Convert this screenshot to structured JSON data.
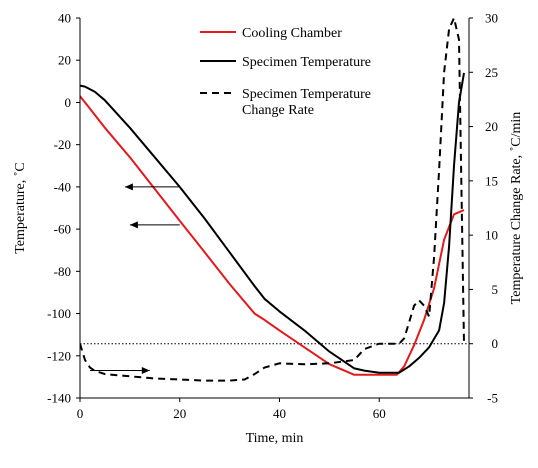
{
  "chart_data": {
    "type": "line",
    "x_axis": {
      "label": "Time, min",
      "range": [
        0,
        78
      ],
      "ticks": [
        0,
        20,
        40,
        60
      ],
      "tick_labels": [
        "0",
        "20",
        "40",
        "60"
      ]
    },
    "y_left": {
      "label": "Temperature, ˚C",
      "range": [
        -140,
        40
      ],
      "ticks": [
        40,
        20,
        0,
        -20,
        -40,
        -60,
        -80,
        -100,
        -120,
        -140
      ],
      "tick_labels": [
        "40",
        "20",
        "0",
        "-20",
        "-40",
        "-60",
        "-80",
        "-100",
        "-120",
        "-140"
      ]
    },
    "y_right": {
      "label": "Temperature Change Rate, ˚C/min",
      "range": [
        -5,
        30
      ],
      "ticks": [
        30,
        25,
        20,
        15,
        10,
        5,
        0,
        -5
      ],
      "tick_labels": [
        "30",
        "25",
        "20",
        "15",
        "10",
        "5",
        "0",
        "-5"
      ]
    },
    "zero_rate_reference": {
      "axis": "right",
      "value": 0,
      "style": "dotted"
    },
    "legend": {
      "position": "top-center",
      "entries": [
        {
          "label_lines": [
            "Cooling Chamber"
          ],
          "color": "#e31a1c",
          "dash": "solid"
        },
        {
          "label_lines": [
            "Specimen Temperature"
          ],
          "color": "#000000",
          "dash": "solid"
        },
        {
          "label_lines": [
            "Specimen Temperature",
            "Change Rate"
          ],
          "color": "#000000",
          "dash": "dashed"
        }
      ]
    },
    "annotations": [
      {
        "type": "arrow",
        "points_to": "left-axis",
        "from": {
          "x": 20,
          "y": -40
        },
        "to": {
          "x": 9,
          "y": -40
        }
      },
      {
        "type": "arrow",
        "points_to": "left-axis",
        "from": {
          "x": 20,
          "y": -58
        },
        "to": {
          "x": 10,
          "y": -58
        }
      },
      {
        "type": "arrow",
        "points_to": "right-axis",
        "from": {
          "x": 2,
          "y": -127
        },
        "to": {
          "x": 14,
          "y": -127
        }
      }
    ],
    "series": [
      {
        "name": "Cooling Chamber",
        "axis": "left",
        "color": "#e31a1c",
        "dash": "solid",
        "x": [
          0,
          2,
          5,
          10,
          15,
          20,
          25,
          30,
          35,
          37,
          40,
          45,
          50,
          55,
          57,
          60,
          62,
          63.5,
          65,
          67,
          69,
          71,
          73,
          75,
          77
        ],
        "y": [
          3,
          -3,
          -12,
          -26,
          -41,
          -56,
          -71,
          -86,
          -100,
          -103,
          -108,
          -116,
          -124,
          -129,
          -129,
          -129,
          -129,
          -129,
          -125,
          -115,
          -103,
          -88,
          -65,
          -53,
          -51
        ]
      },
      {
        "name": "Specimen Temperature",
        "axis": "left",
        "color": "#000000",
        "dash": "solid",
        "x": [
          0,
          1,
          3,
          5,
          10,
          15,
          20,
          25,
          30,
          35,
          37,
          40,
          45,
          50,
          55,
          57,
          60,
          62,
          64,
          66,
          68,
          70,
          72,
          73,
          74,
          75,
          76,
          77
        ],
        "y": [
          8,
          7.5,
          5,
          1,
          -12,
          -26,
          -40,
          -55,
          -71,
          -87,
          -93,
          -99,
          -108,
          -118,
          -126,
          -127,
          -128,
          -128,
          -128,
          -125,
          -121,
          -116,
          -108,
          -95,
          -68,
          -30,
          0,
          14
        ]
      },
      {
        "name": "Specimen Temperature Change Rate",
        "axis": "right",
        "color": "#000000",
        "dash": "dashed",
        "x": [
          0,
          1,
          2,
          3,
          5,
          10,
          15,
          20,
          25,
          30,
          33,
          35,
          37,
          40,
          45,
          50,
          55,
          57,
          60,
          62,
          64,
          65,
          66,
          67,
          68,
          69,
          70,
          71,
          72,
          73,
          74,
          75,
          76,
          77
        ],
        "y": [
          0,
          -1.5,
          -2.2,
          -2.5,
          -2.8,
          -3,
          -3.2,
          -3.3,
          -3.4,
          -3.4,
          -3.3,
          -2.8,
          -2.2,
          -1.8,
          -1.9,
          -1.8,
          -1.5,
          -0.5,
          0,
          0,
          0,
          0.5,
          2,
          3.5,
          4,
          3.5,
          2.5,
          8,
          16,
          25,
          29,
          30,
          28,
          0
        ]
      }
    ]
  }
}
